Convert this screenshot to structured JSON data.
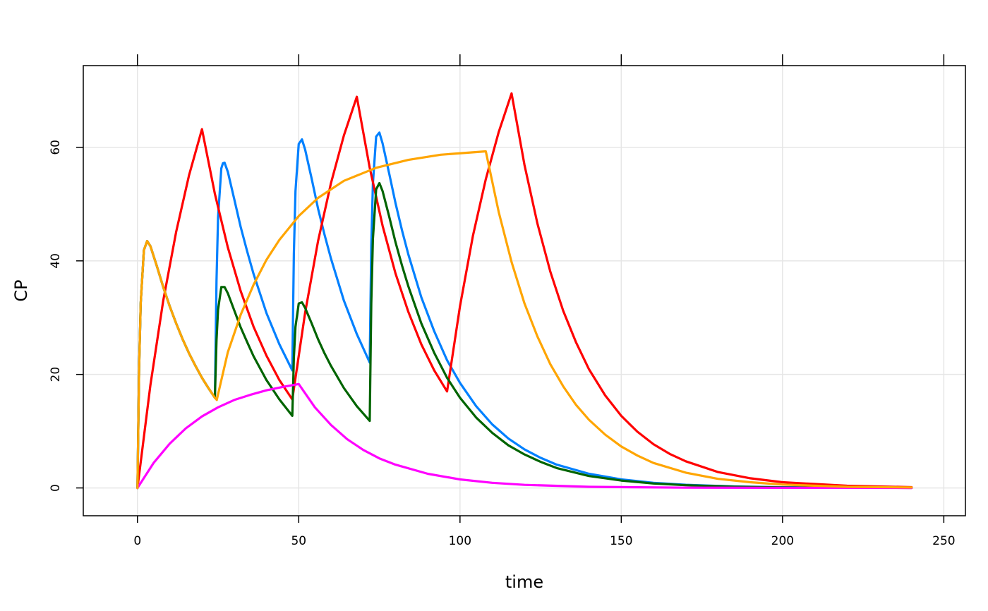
{
  "chart_data": {
    "type": "line",
    "title": "",
    "xlabel": "time",
    "ylabel": "CP",
    "xlim": [
      -16.8,
      256.7
    ],
    "ylim": [
      -4.9,
      74.4
    ],
    "grid": true,
    "legend": "none",
    "x_ticks": [
      0,
      50,
      100,
      150,
      200,
      250
    ],
    "y_ticks": [
      0,
      20,
      40,
      60
    ],
    "series": [
      {
        "name": "blue",
        "color": "#0080FF",
        "points": [
          [
            0,
            0
          ],
          [
            0.5,
            21.0
          ],
          [
            1,
            32.6
          ],
          [
            2,
            41.9
          ],
          [
            3,
            43.5
          ],
          [
            4,
            42.6
          ],
          [
            6,
            39.1
          ],
          [
            8,
            35.4
          ],
          [
            10,
            32.0
          ],
          [
            12,
            29.0
          ],
          [
            14,
            26.2
          ],
          [
            16,
            23.7
          ],
          [
            18,
            21.5
          ],
          [
            20,
            19.4
          ],
          [
            22,
            17.6
          ],
          [
            24,
            15.9
          ],
          [
            24.5,
            36.5
          ],
          [
            25,
            47.7
          ],
          [
            26,
            56.3
          ],
          [
            26.5,
            57.2
          ],
          [
            27,
            57.3
          ],
          [
            28,
            55.7
          ],
          [
            30,
            50.9
          ],
          [
            32,
            46.0
          ],
          [
            34,
            41.7
          ],
          [
            36,
            37.7
          ],
          [
            40,
            30.8
          ],
          [
            44,
            25.3
          ],
          [
            48,
            20.7
          ],
          [
            48.5,
            41.2
          ],
          [
            49,
            52.3
          ],
          [
            50,
            60.6
          ],
          [
            51,
            61.4
          ],
          [
            52,
            59.6
          ],
          [
            54,
            54.5
          ],
          [
            56,
            49.2
          ],
          [
            58,
            44.6
          ],
          [
            60,
            40.4
          ],
          [
            64,
            33.0
          ],
          [
            68,
            27.1
          ],
          [
            72,
            22.1
          ],
          [
            72.5,
            42.5
          ],
          [
            73,
            53.6
          ],
          [
            74,
            61.9
          ],
          [
            75,
            62.6
          ],
          [
            76,
            60.7
          ],
          [
            78,
            55.5
          ],
          [
            80,
            50.2
          ],
          [
            82,
            45.4
          ],
          [
            84,
            41.1
          ],
          [
            88,
            33.6
          ],
          [
            92,
            27.6
          ],
          [
            96,
            22.5
          ],
          [
            100,
            18.5
          ],
          [
            105,
            14.4
          ],
          [
            110,
            11.2
          ],
          [
            115,
            8.7
          ],
          [
            120,
            6.8
          ],
          [
            125,
            5.3
          ],
          [
            130,
            4.1
          ],
          [
            140,
            2.5
          ],
          [
            150,
            1.5
          ],
          [
            160,
            0.9
          ],
          [
            170,
            0.56
          ],
          [
            185,
            0.26
          ],
          [
            200,
            0.12
          ],
          [
            220,
            0.05
          ],
          [
            240,
            0.02
          ]
        ]
      },
      {
        "name": "red",
        "color": "#FF0000",
        "points": [
          [
            0,
            0
          ],
          [
            4,
            18.1
          ],
          [
            8,
            33.0
          ],
          [
            12,
            45.1
          ],
          [
            16,
            55.1
          ],
          [
            20,
            63.2
          ],
          [
            24,
            51.8
          ],
          [
            28,
            42.4
          ],
          [
            32,
            34.7
          ],
          [
            36,
            28.4
          ],
          [
            40,
            23.3
          ],
          [
            44,
            19.0
          ],
          [
            48,
            15.6
          ],
          [
            52,
            30.9
          ],
          [
            56,
            43.5
          ],
          [
            60,
            53.7
          ],
          [
            64,
            62.1
          ],
          [
            68,
            68.9
          ],
          [
            72,
            56.4
          ],
          [
            76,
            46.2
          ],
          [
            80,
            37.8
          ],
          [
            84,
            31.0
          ],
          [
            88,
            25.3
          ],
          [
            92,
            20.7
          ],
          [
            96,
            17.0
          ],
          [
            100,
            32.0
          ],
          [
            104,
            44.4
          ],
          [
            108,
            54.4
          ],
          [
            112,
            62.7
          ],
          [
            116,
            69.5
          ],
          [
            120,
            56.9
          ],
          [
            124,
            46.6
          ],
          [
            128,
            38.1
          ],
          [
            132,
            31.2
          ],
          [
            136,
            25.6
          ],
          [
            140,
            20.9
          ],
          [
            145,
            16.3
          ],
          [
            150,
            12.7
          ],
          [
            155,
            9.9
          ],
          [
            160,
            7.7
          ],
          [
            165,
            6.0
          ],
          [
            170,
            4.7
          ],
          [
            180,
            2.8
          ],
          [
            190,
            1.7
          ],
          [
            200,
            1.0
          ],
          [
            220,
            0.38
          ],
          [
            240,
            0.14
          ]
        ]
      },
      {
        "name": "green",
        "color": "#006400",
        "points": [
          [
            0,
            0
          ],
          [
            0.5,
            21.0
          ],
          [
            1,
            32.6
          ],
          [
            2,
            41.9
          ],
          [
            3,
            43.5
          ],
          [
            4,
            42.6
          ],
          [
            6,
            39.1
          ],
          [
            8,
            35.4
          ],
          [
            10,
            32.0
          ],
          [
            12,
            29.0
          ],
          [
            14,
            26.2
          ],
          [
            16,
            23.7
          ],
          [
            18,
            21.5
          ],
          [
            20,
            19.4
          ],
          [
            22,
            17.6
          ],
          [
            24,
            15.9
          ],
          [
            24.5,
            26.0
          ],
          [
            25,
            31.4
          ],
          [
            26,
            35.4
          ],
          [
            27,
            35.4
          ],
          [
            28,
            34.3
          ],
          [
            30,
            31.3
          ],
          [
            32,
            28.3
          ],
          [
            34,
            25.7
          ],
          [
            36,
            23.2
          ],
          [
            40,
            19.0
          ],
          [
            44,
            15.6
          ],
          [
            48,
            12.7
          ],
          [
            48.5,
            22.9
          ],
          [
            49,
            28.4
          ],
          [
            50,
            32.5
          ],
          [
            51,
            32.7
          ],
          [
            52,
            31.7
          ],
          [
            54,
            29.0
          ],
          [
            56,
            26.2
          ],
          [
            58,
            23.7
          ],
          [
            60,
            21.5
          ],
          [
            64,
            17.6
          ],
          [
            68,
            14.4
          ],
          [
            72,
            11.8
          ],
          [
            72.5,
            32.5
          ],
          [
            73,
            43.8
          ],
          [
            74,
            52.6
          ],
          [
            75,
            53.7
          ],
          [
            76,
            52.3
          ],
          [
            78,
            47.9
          ],
          [
            80,
            43.3
          ],
          [
            82,
            39.2
          ],
          [
            84,
            35.5
          ],
          [
            88,
            29.0
          ],
          [
            92,
            23.8
          ],
          [
            96,
            19.4
          ],
          [
            100,
            15.9
          ],
          [
            105,
            12.4
          ],
          [
            110,
            9.7
          ],
          [
            115,
            7.5
          ],
          [
            120,
            5.9
          ],
          [
            125,
            4.6
          ],
          [
            130,
            3.5
          ],
          [
            140,
            2.1
          ],
          [
            150,
            1.3
          ],
          [
            160,
            0.78
          ],
          [
            170,
            0.48
          ],
          [
            185,
            0.22
          ],
          [
            200,
            0.1
          ],
          [
            220,
            0.04
          ],
          [
            240,
            0.015
          ]
        ]
      },
      {
        "name": "magenta",
        "color": "#FF00FF",
        "points": [
          [
            0,
            0
          ],
          [
            5,
            4.4
          ],
          [
            10,
            7.8
          ],
          [
            15,
            10.5
          ],
          [
            20,
            12.6
          ],
          [
            25,
            14.2
          ],
          [
            30,
            15.5
          ],
          [
            35,
            16.4
          ],
          [
            40,
            17.2
          ],
          [
            45,
            17.8
          ],
          [
            50,
            18.3
          ],
          [
            55,
            14.2
          ],
          [
            60,
            11.1
          ],
          [
            65,
            8.6
          ],
          [
            70,
            6.7
          ],
          [
            75,
            5.2
          ],
          [
            80,
            4.1
          ],
          [
            90,
            2.5
          ],
          [
            100,
            1.5
          ],
          [
            110,
            0.9
          ],
          [
            120,
            0.55
          ],
          [
            140,
            0.2
          ],
          [
            170,
            0.05
          ],
          [
            240,
            0
          ]
        ]
      },
      {
        "name": "orange",
        "color": "#FFA500",
        "points": [
          [
            0,
            0
          ],
          [
            0.5,
            21.0
          ],
          [
            1,
            32.6
          ],
          [
            2,
            41.9
          ],
          [
            3,
            43.5
          ],
          [
            4,
            42.6
          ],
          [
            6,
            39.1
          ],
          [
            8,
            35.4
          ],
          [
            10,
            32.0
          ],
          [
            12,
            29.0
          ],
          [
            14,
            26.2
          ],
          [
            16,
            23.7
          ],
          [
            18,
            21.5
          ],
          [
            20,
            19.4
          ],
          [
            22,
            17.6
          ],
          [
            24,
            15.9
          ],
          [
            24.6,
            15.5
          ],
          [
            25,
            16.5
          ],
          [
            28,
            23.9
          ],
          [
            32,
            30.5
          ],
          [
            36,
            35.8
          ],
          [
            40,
            40.2
          ],
          [
            44,
            43.7
          ],
          [
            50,
            47.9
          ],
          [
            56,
            51.1
          ],
          [
            64,
            54.1
          ],
          [
            74,
            56.4
          ],
          [
            84,
            57.8
          ],
          [
            94,
            58.7
          ],
          [
            108,
            59.3
          ],
          [
            112,
            48.6
          ],
          [
            116,
            39.8
          ],
          [
            120,
            32.5
          ],
          [
            124,
            26.7
          ],
          [
            128,
            21.8
          ],
          [
            132,
            17.9
          ],
          [
            136,
            14.6
          ],
          [
            140,
            12.0
          ],
          [
            145,
            9.4
          ],
          [
            150,
            7.3
          ],
          [
            155,
            5.7
          ],
          [
            160,
            4.4
          ],
          [
            170,
            2.7
          ],
          [
            180,
            1.6
          ],
          [
            190,
            1.0
          ],
          [
            200,
            0.6
          ],
          [
            220,
            0.2
          ],
          [
            240,
            0.08
          ]
        ]
      }
    ]
  }
}
